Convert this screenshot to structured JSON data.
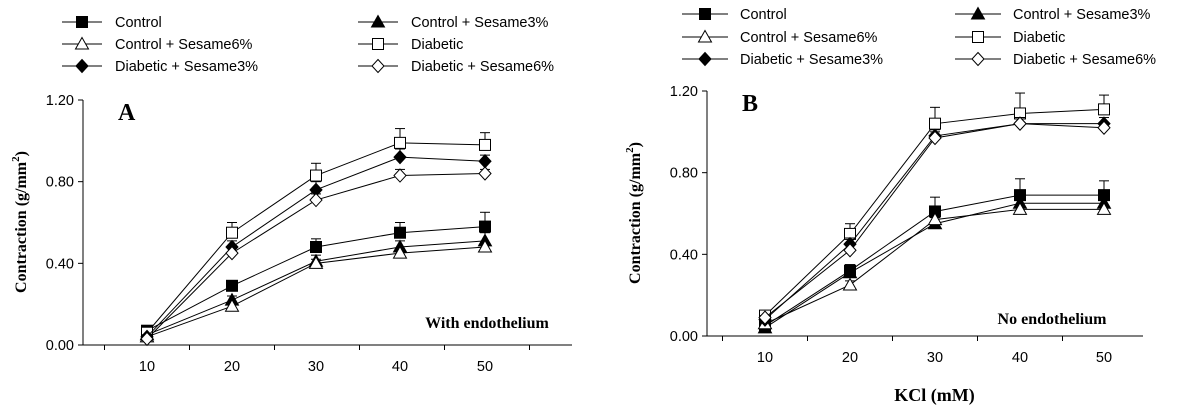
{
  "chart_data": [
    {
      "type": "line",
      "panel_label": "A",
      "annotation": "With endothelium",
      "ylabel": "Contraction (g/mm",
      "ylabel_sup": "2",
      "ylabel_tail": ")",
      "xlabel": "",
      "x": [
        10,
        20,
        30,
        40,
        50
      ],
      "ylim": [
        0,
        1.2
      ],
      "yticks": [
        "0.00",
        "0.40",
        "0.80",
        "1.20"
      ],
      "legend": "top",
      "series": [
        {
          "name": "Control",
          "marker": "square-filled",
          "values": [
            0.07,
            0.29,
            0.48,
            0.55,
            0.58
          ],
          "err": [
            0.01,
            0.02,
            0.04,
            0.05,
            0.07
          ]
        },
        {
          "name": "Control + Sesame3%",
          "marker": "triangle-filled",
          "values": [
            0.05,
            0.22,
            0.41,
            0.48,
            0.51
          ],
          "err": [
            0.01,
            0.02,
            0.03,
            0.03,
            0.04
          ]
        },
        {
          "name": "Control + Sesame6%",
          "marker": "triangle-open",
          "values": [
            0.04,
            0.19,
            0.4,
            0.45,
            0.48
          ],
          "err": [
            0.01,
            0.02,
            0.02,
            0.02,
            0.02
          ]
        },
        {
          "name": "Diabetic",
          "marker": "square-open",
          "values": [
            0.06,
            0.55,
            0.83,
            0.99,
            0.98
          ],
          "err": [
            0.01,
            0.05,
            0.06,
            0.07,
            0.06
          ]
        },
        {
          "name": "Diabetic + Sesame3%",
          "marker": "diamond-filled",
          "values": [
            0.04,
            0.48,
            0.76,
            0.92,
            0.9
          ],
          "err": [
            0.01,
            0.03,
            0.04,
            0.04,
            0.03
          ]
        },
        {
          "name": "Diabetic + Sesame6%",
          "marker": "diamond-open",
          "values": [
            0.03,
            0.45,
            0.71,
            0.83,
            0.84
          ],
          "err": [
            0.01,
            0.03,
            0.03,
            0.03,
            0.02
          ]
        }
      ]
    },
    {
      "type": "line",
      "panel_label": "B",
      "annotation": "No endothelium",
      "ylabel": "Contraction (g/mm",
      "ylabel_sup": "2",
      "ylabel_tail": ")",
      "xlabel": "KCl (mM)",
      "x": [
        10,
        20,
        30,
        40,
        50
      ],
      "ylim": [
        0,
        1.2
      ],
      "yticks": [
        "0.00",
        "0.40",
        "0.80",
        "1.20"
      ],
      "legend": "top",
      "series": [
        {
          "name": "Control",
          "marker": "square-filled",
          "values": [
            0.05,
            0.32,
            0.61,
            0.69,
            0.69
          ],
          "err": [
            0.01,
            0.03,
            0.07,
            0.08,
            0.07
          ]
        },
        {
          "name": "Control + Sesame3%",
          "marker": "triangle-filled",
          "values": [
            0.04,
            0.31,
            0.55,
            0.65,
            0.65
          ],
          "err": [
            0.01,
            0.02,
            0.03,
            0.03,
            0.03
          ]
        },
        {
          "name": "Control + Sesame6%",
          "marker": "triangle-open",
          "values": [
            0.06,
            0.25,
            0.57,
            0.62,
            0.62
          ],
          "err": [
            0.01,
            0.02,
            0.02,
            0.02,
            0.02
          ]
        },
        {
          "name": "Diabetic",
          "marker": "square-open",
          "values": [
            0.1,
            0.5,
            1.04,
            1.09,
            1.11
          ],
          "err": [
            0.01,
            0.05,
            0.08,
            0.1,
            0.07
          ]
        },
        {
          "name": "Diabetic + Sesame3%",
          "marker": "diamond-filled",
          "values": [
            0.08,
            0.45,
            0.98,
            1.04,
            1.04
          ],
          "err": [
            0.01,
            0.03,
            0.03,
            0.03,
            0.03
          ]
        },
        {
          "name": "Diabetic + Sesame6%",
          "marker": "diamond-open",
          "values": [
            0.09,
            0.42,
            0.97,
            1.04,
            1.02
          ],
          "err": [
            0.01,
            0.03,
            0.03,
            0.03,
            0.02
          ]
        }
      ]
    }
  ]
}
